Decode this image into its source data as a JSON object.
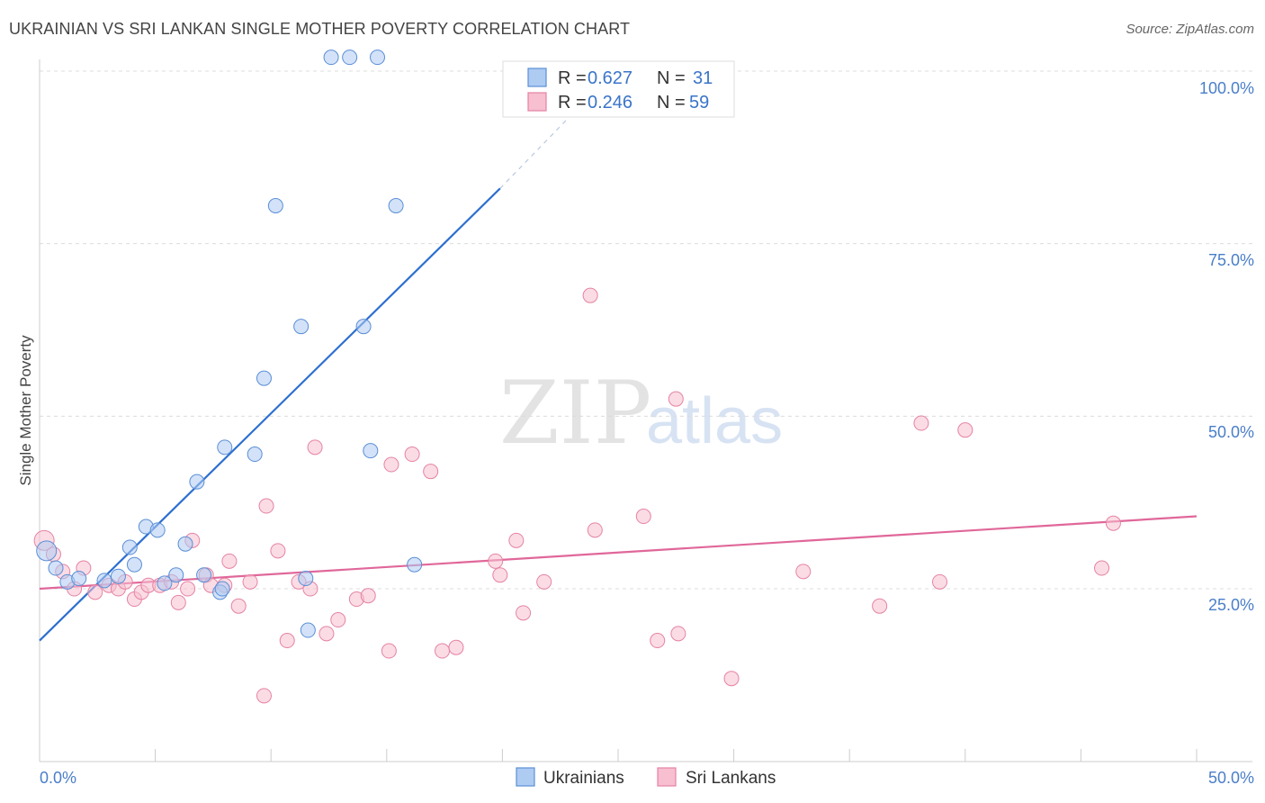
{
  "header": {
    "title": "UKRAINIAN VS SRI LANKAN SINGLE MOTHER POVERTY CORRELATION CHART",
    "source": "Source: ZipAtlas.com"
  },
  "watermark": {
    "zip": "ZIP",
    "atlas": "atlas"
  },
  "legend": {
    "rows": [
      {
        "r_label": "R = ",
        "r_value": "0.627",
        "n_label": "N = ",
        "n_value": "31",
        "color": "#aecbf2",
        "stroke": "#5a8fd6"
      },
      {
        "r_label": "R = ",
        "r_value": "0.246",
        "n_label": "N = ",
        "n_value": "59",
        "color": "#f7bfd0",
        "stroke": "#e583a3"
      }
    ]
  },
  "bottom_legend": [
    {
      "label": "Ukrainians",
      "color": "#aecbf2",
      "stroke": "#5a8fd6"
    },
    {
      "label": "Sri Lankans",
      "color": "#f7bfd0",
      "stroke": "#e583a3"
    }
  ],
  "chart_data": {
    "type": "scatter",
    "title": "UKRAINIAN VS SRI LANKAN SINGLE MOTHER POVERTY CORRELATION CHART",
    "xlabel": "",
    "ylabel": "Single Mother Poverty",
    "xlim": [
      0,
      50
    ],
    "ylim": [
      0,
      102
    ],
    "x_tick_labels": [
      "0.0%",
      "50.0%"
    ],
    "y_ticks": [
      25,
      50,
      75,
      100
    ],
    "y_tick_labels": [
      "25.0%",
      "50.0%",
      "75.0%",
      "100.0%"
    ],
    "grid": true,
    "series": [
      {
        "name": "Ukrainians",
        "color": "#aecbf2",
        "stroke": "#5a8fd6",
        "line_color": "#2d6fd0",
        "points": [
          [
            0.3,
            30.5
          ],
          [
            0.7,
            28
          ],
          [
            1.2,
            26
          ],
          [
            1.7,
            26.5
          ],
          [
            2.8,
            26.2
          ],
          [
            3.4,
            26.8
          ],
          [
            3.9,
            31
          ],
          [
            4.6,
            34
          ],
          [
            4.1,
            28.5
          ],
          [
            5.1,
            33.5
          ],
          [
            5.4,
            25.8
          ],
          [
            5.9,
            27
          ],
          [
            6.3,
            31.5
          ],
          [
            6.8,
            40.5
          ],
          [
            7.1,
            27
          ],
          [
            7.8,
            24.5
          ],
          [
            7.9,
            25
          ],
          [
            8.0,
            45.5
          ],
          [
            9.3,
            44.5
          ],
          [
            9.7,
            55.5
          ],
          [
            10.2,
            80.5
          ],
          [
            11.3,
            63
          ],
          [
            11.5,
            26.5
          ],
          [
            11.6,
            19
          ],
          [
            12.6,
            102
          ],
          [
            13.4,
            102
          ],
          [
            14.0,
            63
          ],
          [
            14.3,
            45
          ],
          [
            14.6,
            102
          ],
          [
            15.4,
            80.5
          ],
          [
            16.2,
            28.5
          ]
        ],
        "trend": {
          "x": [
            0,
            19.9
          ],
          "y": [
            17.5,
            83
          ]
        },
        "trend_dashed": {
          "x": [
            19.9,
            23.8
          ],
          "y": [
            83,
            96.5
          ]
        }
      },
      {
        "name": "Sri Lankans",
        "color": "#f7bfd0",
        "stroke": "#e583a3",
        "line_color": "#e0679a",
        "points": [
          [
            0.2,
            32
          ],
          [
            0.6,
            30
          ],
          [
            1.0,
            27.5
          ],
          [
            1.5,
            25
          ],
          [
            1.9,
            28
          ],
          [
            2.4,
            24.5
          ],
          [
            3.0,
            25.5
          ],
          [
            3.4,
            25
          ],
          [
            3.7,
            26
          ],
          [
            4.1,
            23.5
          ],
          [
            4.4,
            24.5
          ],
          [
            4.7,
            25.5
          ],
          [
            5.2,
            25.5
          ],
          [
            5.7,
            26
          ],
          [
            6.0,
            23
          ],
          [
            6.4,
            25
          ],
          [
            6.6,
            32
          ],
          [
            7.2,
            27
          ],
          [
            7.4,
            25.5
          ],
          [
            8.0,
            25.5
          ],
          [
            8.2,
            29
          ],
          [
            8.6,
            22.5
          ],
          [
            9.1,
            26
          ],
          [
            9.7,
            9.5
          ],
          [
            9.8,
            37
          ],
          [
            10.3,
            30.5
          ],
          [
            10.7,
            17.5
          ],
          [
            11.2,
            26
          ],
          [
            11.7,
            25
          ],
          [
            11.9,
            45.5
          ],
          [
            12.4,
            18.5
          ],
          [
            12.9,
            20.5
          ],
          [
            13.7,
            23.5
          ],
          [
            14.2,
            24
          ],
          [
            15.1,
            16
          ],
          [
            15.2,
            43
          ],
          [
            16.1,
            44.5
          ],
          [
            16.9,
            42
          ],
          [
            17.4,
            16
          ],
          [
            18.0,
            16.5
          ],
          [
            19.7,
            29
          ],
          [
            19.9,
            27
          ],
          [
            20.6,
            32
          ],
          [
            20.9,
            21.5
          ],
          [
            21.8,
            26
          ],
          [
            23.8,
            67.5
          ],
          [
            24.0,
            33.5
          ],
          [
            26.1,
            35.5
          ],
          [
            26.7,
            17.5
          ],
          [
            27.5,
            52.5
          ],
          [
            27.6,
            18.5
          ],
          [
            29.9,
            12
          ],
          [
            33.0,
            27.5
          ],
          [
            36.3,
            22.5
          ],
          [
            38.1,
            49
          ],
          [
            38.9,
            26
          ],
          [
            40.0,
            48
          ],
          [
            45.9,
            28
          ],
          [
            46.4,
            34.5
          ]
        ],
        "trend": {
          "x": [
            0,
            50
          ],
          "y": [
            25,
            35.5
          ]
        }
      }
    ]
  }
}
